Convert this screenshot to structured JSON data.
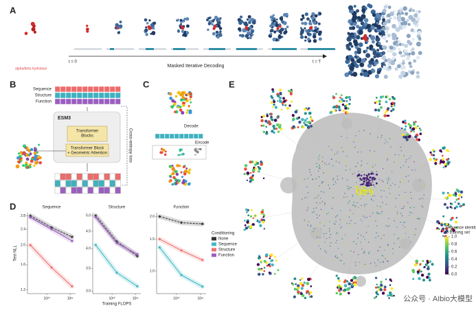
{
  "panel_a": {
    "label": "A",
    "protein": "alpha/beta hydrolase",
    "start": "t = 0",
    "axis": "Masked Iterative Decoding",
    "end": "t = T"
  },
  "panel_b": {
    "label": "B",
    "tracks": [
      "Sequence",
      "Structure",
      "Function"
    ],
    "model": "ESM3",
    "block1": [
      "Transformer",
      "Blocks"
    ],
    "block2": [
      "Transformer Block",
      "+ Geometric Attention"
    ],
    "loss": "Cross-entropy loss"
  },
  "panel_c": {
    "label": "C",
    "decode": "Decode",
    "encode": "Encode"
  },
  "panel_d": {
    "label": "D",
    "legend_title": "Conditioning"
  },
  "chart_data": [
    {
      "type": "line",
      "title": "Sequence",
      "ylabel": "Test NLL",
      "xlog": true,
      "ylog": true,
      "x": [
        2e+19,
        1.6e+20,
        1.2e+21
      ],
      "xlim": [
        1.5e+19,
        1.7e+21
      ],
      "xticks": [
        {
          "value": 1e+20,
          "label": "10²⁰"
        },
        {
          "value": 1e+21,
          "label": "10²¹"
        }
      ],
      "ylim": [
        1.15,
        2.9
      ],
      "yticks": [
        2.8,
        2.4,
        {
          "value": 2,
          "label": "2.0"
        },
        1.6,
        1.2
      ],
      "series": [
        {
          "name": "None",
          "color": "#333333",
          "values": [
            2.8,
            2.45,
            2.2
          ]
        },
        {
          "name": "Sequence",
          "color": "#3fb8c4",
          "values": [
            null,
            null,
            null
          ]
        },
        {
          "name": "Structure",
          "color": "#f07070",
          "values": [
            2.0,
            1.55,
            1.25
          ]
        },
        {
          "name": "Function",
          "color": "#9b5fc0",
          "values": [
            2.75,
            2.4,
            2.1
          ]
        }
      ]
    },
    {
      "type": "line",
      "title": "Structure",
      "xlabel": "Training FLOPS",
      "xlog": true,
      "ylog": true,
      "x": [
        2e+19,
        1.6e+20,
        1.2e+21
      ],
      "xlim": [
        1.5e+19,
        1.7e+21
      ],
      "xticks": [
        {
          "value": 1e+20,
          "label": "10²⁰"
        },
        {
          "value": 1e+21,
          "label": "10²¹"
        }
      ],
      "ylim": [
        2.95,
        5.1
      ],
      "yticks": [
        {
          "value": 5,
          "label": "5.0"
        },
        4.5,
        {
          "value": 4,
          "label": "4.0"
        },
        3.5,
        {
          "value": 3,
          "label": "3.0"
        }
      ],
      "series": [
        {
          "name": "None",
          "color": "#333333",
          "values": [
            5.0,
            4.2,
            3.8
          ]
        },
        {
          "name": "Sequence",
          "color": "#3fb8c4",
          "values": [
            4.1,
            3.4,
            3.1
          ]
        },
        {
          "name": "Structure",
          "color": "#f07070",
          "values": [
            null,
            null,
            null
          ]
        },
        {
          "name": "Function",
          "color": "#9b5fc0",
          "values": [
            4.95,
            4.15,
            3.85
          ]
        }
      ]
    },
    {
      "type": "line",
      "title": "Function",
      "xlog": true,
      "ylog": true,
      "legend": "right",
      "x": [
        2e+19,
        1.6e+20,
        1.2e+21
      ],
      "xlim": [
        1.5e+19,
        1.7e+21
      ],
      "xticks": [
        {
          "value": 1e+20,
          "label": "10²⁰"
        },
        {
          "value": 1e+21,
          "label": "10²¹"
        }
      ],
      "ylim": [
        0.75,
        2.1
      ],
      "yticks": [
        {
          "value": 2,
          "label": "2.0"
        },
        1.5,
        {
          "value": 1,
          "label": "1.0"
        }
      ],
      "series": [
        {
          "name": "None",
          "color": "#333333",
          "values": [
            2.0,
            1.85,
            1.82
          ]
        },
        {
          "name": "Sequence",
          "color": "#3fb8c4",
          "values": [
            1.35,
            0.95,
            0.82
          ]
        },
        {
          "name": "Structure",
          "color": "#f07070",
          "values": [
            1.5,
            1.3,
            1.15
          ]
        },
        {
          "name": "Function",
          "color": "#9b5fc0",
          "values": [
            null,
            null,
            null
          ]
        }
      ]
    }
  ],
  "panel_e": {
    "label": "E",
    "colorbar": {
      "title": [
        "Sequence identity",
        "to training set"
      ],
      "lim": [
        0,
        1
      ],
      "ticks": [
        {
          "value": 1,
          "label": "1.0"
        },
        0.8,
        0.6,
        0.4,
        0.2,
        {
          "value": 0,
          "label": "0.0"
        }
      ]
    }
  },
  "watermark": "公众号 · AIbio大模型"
}
